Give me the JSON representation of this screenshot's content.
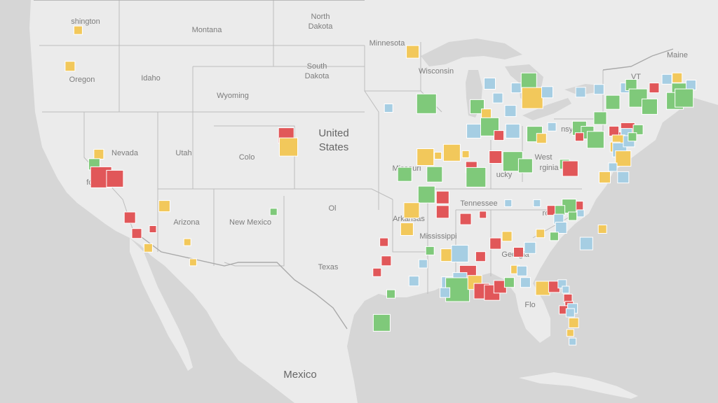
{
  "map": {
    "country_labels": [
      {
        "text": "United",
        "name": "country-label-united"
      },
      {
        "text": "States",
        "name": "country-label-states"
      },
      {
        "text": "Mexico",
        "name": "country-label-mexico"
      }
    ],
    "state_labels": [
      {
        "text": "shington",
        "name": "state-label-washington"
      },
      {
        "text": "Oregon",
        "name": "state-label-oregon"
      },
      {
        "text": "Idaho",
        "name": "state-label-idaho"
      },
      {
        "text": "Montana",
        "name": "state-label-montana"
      },
      {
        "text": "Wyoming",
        "name": "state-label-wyoming"
      },
      {
        "text": "North",
        "name": "state-label-north-dakota-1"
      },
      {
        "text": "Dakota",
        "name": "state-label-north-dakota-2"
      },
      {
        "text": "South",
        "name": "state-label-south-dakota-1"
      },
      {
        "text": "Dakota",
        "name": "state-label-south-dakota-2"
      },
      {
        "text": "Minnesota",
        "name": "state-label-minnesota"
      },
      {
        "text": "Wisconsin",
        "name": "state-label-wisconsin"
      },
      {
        "text": "Nevada",
        "name": "state-label-nevada"
      },
      {
        "text": "Utah",
        "name": "state-label-utah"
      },
      {
        "text": "Colo",
        "name": "state-label-colorado"
      },
      {
        "text": "Arizona",
        "name": "state-label-arizona"
      },
      {
        "text": "New Mexico",
        "name": "state-label-new-mexico"
      },
      {
        "text": "Missouri",
        "name": "state-label-missouri"
      },
      {
        "text": "Ol",
        "name": "state-label-oklahoma"
      },
      {
        "text": "Arkansas",
        "name": "state-label-arkansas"
      },
      {
        "text": "Texas",
        "name": "state-label-texas"
      },
      {
        "text": "Mississippi",
        "name": "state-label-mississippi"
      },
      {
        "text": "Tennessee",
        "name": "state-label-tennessee"
      },
      {
        "text": "ucky",
        "name": "state-label-kentucky"
      },
      {
        "text": "West",
        "name": "state-label-west-virginia-1"
      },
      {
        "text": "rginia",
        "name": "state-label-west-virginia-2"
      },
      {
        "text": "nsylvania",
        "name": "state-label-pennsylvania"
      },
      {
        "text": "rolina",
        "name": "state-label-north-carolina"
      },
      {
        "text": "Georgia",
        "name": "state-label-georgia"
      },
      {
        "text": "Flo",
        "name": "state-label-florida"
      },
      {
        "text": "fornia",
        "name": "state-label-california"
      },
      {
        "text": "VT",
        "name": "state-label-vermont"
      },
      {
        "text": "Maine",
        "name": "state-label-maine"
      }
    ],
    "marker_colors": {
      "red": "#e15759",
      "green": "#7fc97a",
      "yellow": "#f2c85b",
      "blue": "#a6cee3"
    },
    "markers": [
      {
        "c": "yellow",
        "lon": -123.0,
        "lat": 47.6,
        "s": 12
      },
      {
        "c": "yellow",
        "lon": -123.7,
        "lat": 45.1,
        "s": 14
      },
      {
        "c": "yellow",
        "lon": -121.2,
        "lat": 39.0,
        "s": 14
      },
      {
        "c": "green",
        "lon": -121.6,
        "lat": 38.3,
        "s": 16
      },
      {
        "c": "red",
        "lon": -121.0,
        "lat": 37.4,
        "s": 30
      },
      {
        "c": "red",
        "lon": -119.8,
        "lat": 37.3,
        "s": 24
      },
      {
        "c": "red",
        "lon": -118.5,
        "lat": 34.6,
        "s": 16
      },
      {
        "c": "red",
        "lon": -117.9,
        "lat": 33.5,
        "s": 14
      },
      {
        "c": "red",
        "lon": -116.5,
        "lat": 33.8,
        "s": 10
      },
      {
        "c": "yellow",
        "lon": -116.9,
        "lat": 32.5,
        "s": 12
      },
      {
        "c": "yellow",
        "lon": -115.5,
        "lat": 35.4,
        "s": 16
      },
      {
        "c": "yellow",
        "lon": -113.5,
        "lat": 32.9,
        "s": 10
      },
      {
        "c": "yellow",
        "lon": -113.0,
        "lat": 31.5,
        "s": 10
      },
      {
        "c": "red",
        "lon": -104.9,
        "lat": 40.3,
        "s": 22
      },
      {
        "c": "yellow",
        "lon": -104.7,
        "lat": 39.5,
        "s": 26
      },
      {
        "c": "green",
        "lon": -106.0,
        "lat": 35.0,
        "s": 10
      },
      {
        "c": "yellow",
        "lon": -93.9,
        "lat": 46.1,
        "s": 18
      },
      {
        "c": "green",
        "lon": -92.7,
        "lat": 42.5,
        "s": 28
      },
      {
        "c": "blue",
        "lon": -96.0,
        "lat": 42.2,
        "s": 12
      },
      {
        "c": "green",
        "lon": -88.3,
        "lat": 42.3,
        "s": 20
      },
      {
        "c": "blue",
        "lon": -87.2,
        "lat": 43.9,
        "s": 16
      },
      {
        "c": "blue",
        "lon": -84.9,
        "lat": 43.6,
        "s": 14
      },
      {
        "c": "blue",
        "lon": -86.5,
        "lat": 42.9,
        "s": 14
      },
      {
        "c": "green",
        "lon": -83.8,
        "lat": 44.1,
        "s": 22
      },
      {
        "c": "yellow",
        "lon": -83.5,
        "lat": 42.9,
        "s": 30
      },
      {
        "c": "blue",
        "lon": -82.2,
        "lat": 43.3,
        "s": 16
      },
      {
        "c": "blue",
        "lon": -85.4,
        "lat": 42.0,
        "s": 16
      },
      {
        "c": "yellow",
        "lon": -87.5,
        "lat": 41.8,
        "s": 14
      },
      {
        "c": "blue",
        "lon": -88.6,
        "lat": 40.6,
        "s": 20
      },
      {
        "c": "green",
        "lon": -87.2,
        "lat": 40.9,
        "s": 26
      },
      {
        "c": "blue",
        "lon": -85.2,
        "lat": 40.6,
        "s": 20
      },
      {
        "c": "red",
        "lon": -86.4,
        "lat": 40.3,
        "s": 14
      },
      {
        "c": "green",
        "lon": -83.3,
        "lat": 40.4,
        "s": 22
      },
      {
        "c": "yellow",
        "lon": -82.7,
        "lat": 40.1,
        "s": 14
      },
      {
        "c": "blue",
        "lon": -81.8,
        "lat": 40.9,
        "s": 12
      },
      {
        "c": "yellow",
        "lon": -90.5,
        "lat": 39.1,
        "s": 24
      },
      {
        "c": "yellow",
        "lon": -89.3,
        "lat": 39.0,
        "s": 10
      },
      {
        "c": "red",
        "lon": -86.7,
        "lat": 38.8,
        "s": 18
      },
      {
        "c": "green",
        "lon": -85.2,
        "lat": 38.5,
        "s": 28
      },
      {
        "c": "green",
        "lon": -84.1,
        "lat": 38.2,
        "s": 20
      },
      {
        "c": "green",
        "lon": -80.7,
        "lat": 38.3,
        "s": 14
      },
      {
        "c": "red",
        "lon": -80.2,
        "lat": 38.0,
        "s": 22
      },
      {
        "c": "green",
        "lon": -79.4,
        "lat": 40.8,
        "s": 20
      },
      {
        "c": "green",
        "lon": -78.7,
        "lat": 40.5,
        "s": 18
      },
      {
        "c": "red",
        "lon": -79.4,
        "lat": 40.2,
        "s": 12
      },
      {
        "c": "green",
        "lon": -77.6,
        "lat": 41.5,
        "s": 18
      },
      {
        "c": "blue",
        "lon": -77.7,
        "lat": 43.5,
        "s": 14
      },
      {
        "c": "blue",
        "lon": -79.3,
        "lat": 43.3,
        "s": 14
      },
      {
        "c": "green",
        "lon": -78.0,
        "lat": 40.0,
        "s": 24
      },
      {
        "c": "green",
        "lon": -76.5,
        "lat": 42.6,
        "s": 20
      },
      {
        "c": "blue",
        "lon": -75.4,
        "lat": 43.6,
        "s": 14
      },
      {
        "c": "green",
        "lon": -74.9,
        "lat": 43.8,
        "s": 16
      },
      {
        "c": "red",
        "lon": -72.9,
        "lat": 43.6,
        "s": 14
      },
      {
        "c": "blue",
        "lon": -71.8,
        "lat": 44.2,
        "s": 14
      },
      {
        "c": "yellow",
        "lon": -70.9,
        "lat": 44.3,
        "s": 14
      },
      {
        "c": "green",
        "lon": -70.7,
        "lat": 43.4,
        "s": 22
      },
      {
        "c": "green",
        "lon": -71.1,
        "lat": 42.7,
        "s": 24
      },
      {
        "c": "blue",
        "lon": -69.7,
        "lat": 43.8,
        "s": 14
      },
      {
        "c": "green",
        "lon": -74.3,
        "lat": 42.9,
        "s": 26
      },
      {
        "c": "green",
        "lon": -73.3,
        "lat": 42.3,
        "s": 22
      },
      {
        "c": "green",
        "lon": -70.3,
        "lat": 42.9,
        "s": 26
      },
      {
        "c": "red",
        "lon": -75.6,
        "lat": 40.1,
        "s": 18
      },
      {
        "c": "red",
        "lon": -75.2,
        "lat": 40.7,
        "s": 20
      },
      {
        "c": "red",
        "lon": -76.4,
        "lat": 40.6,
        "s": 14
      },
      {
        "c": "blue",
        "lon": -75.3,
        "lat": 40.4,
        "s": 16
      },
      {
        "c": "green",
        "lon": -74.3,
        "lat": 40.7,
        "s": 14
      },
      {
        "c": "yellow",
        "lon": -76.0,
        "lat": 39.9,
        "s": 18
      },
      {
        "c": "yellow",
        "lon": -76.3,
        "lat": 39.5,
        "s": 14
      },
      {
        "c": "blue",
        "lon": -75.9,
        "lat": 39.3,
        "s": 20
      },
      {
        "c": "blue",
        "lon": -75.1,
        "lat": 39.9,
        "s": 16
      },
      {
        "c": "green",
        "lon": -74.8,
        "lat": 40.2,
        "s": 12
      },
      {
        "c": "yellow",
        "lon": -75.6,
        "lat": 38.7,
        "s": 22
      },
      {
        "c": "blue",
        "lon": -76.5,
        "lat": 38.1,
        "s": 12
      },
      {
        "c": "blue",
        "lon": -75.6,
        "lat": 37.4,
        "s": 16
      },
      {
        "c": "yellow",
        "lon": -77.2,
        "lat": 37.4,
        "s": 16
      },
      {
        "c": "green",
        "lon": -92.0,
        "lat": 37.6,
        "s": 22
      },
      {
        "c": "yellow",
        "lon": -92.8,
        "lat": 38.8,
        "s": 24
      },
      {
        "c": "yellow",
        "lon": -91.7,
        "lat": 38.9,
        "s": 10
      },
      {
        "c": "red",
        "lon": -88.8,
        "lat": 38.1,
        "s": 16
      },
      {
        "c": "green",
        "lon": -88.4,
        "lat": 37.4,
        "s": 28
      },
      {
        "c": "green",
        "lon": -94.6,
        "lat": 37.6,
        "s": 20
      },
      {
        "c": "green",
        "lon": -92.7,
        "lat": 36.2,
        "s": 24
      },
      {
        "c": "yellow",
        "lon": -94.0,
        "lat": 35.1,
        "s": 22
      },
      {
        "c": "red",
        "lon": -91.3,
        "lat": 36.0,
        "s": 18
      },
      {
        "c": "red",
        "lon": -91.3,
        "lat": 35.0,
        "s": 18
      },
      {
        "c": "red",
        "lon": -89.3,
        "lat": 34.5,
        "s": 16
      },
      {
        "c": "red",
        "lon": -87.8,
        "lat": 34.8,
        "s": 10
      },
      {
        "c": "blue",
        "lon": -85.6,
        "lat": 35.6,
        "s": 10
      },
      {
        "c": "blue",
        "lon": -83.1,
        "lat": 35.6,
        "s": 10
      },
      {
        "c": "red",
        "lon": -81.8,
        "lat": 35.1,
        "s": 14
      },
      {
        "c": "red",
        "lon": -79.5,
        "lat": 35.4,
        "s": 14
      },
      {
        "c": "green",
        "lon": -80.3,
        "lat": 35.4,
        "s": 20
      },
      {
        "c": "green",
        "lon": -81.1,
        "lat": 35.1,
        "s": 14
      },
      {
        "c": "blue",
        "lon": -81.2,
        "lat": 34.5,
        "s": 14
      },
      {
        "c": "blue",
        "lon": -81.0,
        "lat": 33.9,
        "s": 16
      },
      {
        "c": "green",
        "lon": -80.0,
        "lat": 34.7,
        "s": 12
      },
      {
        "c": "blue",
        "lon": -79.3,
        "lat": 34.9,
        "s": 10
      },
      {
        "c": "yellow",
        "lon": -77.4,
        "lat": 33.8,
        "s": 12
      },
      {
        "c": "blue",
        "lon": -78.8,
        "lat": 32.8,
        "s": 18
      },
      {
        "c": "green",
        "lon": -81.6,
        "lat": 33.3,
        "s": 12
      },
      {
        "c": "yellow",
        "lon": -82.8,
        "lat": 33.5,
        "s": 12
      },
      {
        "c": "yellow",
        "lon": -85.7,
        "lat": 33.3,
        "s": 14
      },
      {
        "c": "red",
        "lon": -86.7,
        "lat": 32.8,
        "s": 16
      },
      {
        "c": "red",
        "lon": -84.7,
        "lat": 32.2,
        "s": 14
      },
      {
        "c": "blue",
        "lon": -83.7,
        "lat": 32.5,
        "s": 16
      },
      {
        "c": "yellow",
        "lon": -85.0,
        "lat": 31.0,
        "s": 12
      },
      {
        "c": "blue",
        "lon": -84.4,
        "lat": 30.9,
        "s": 14
      },
      {
        "c": "yellow",
        "lon": -90.9,
        "lat": 32.0,
        "s": 18
      },
      {
        "c": "blue",
        "lon": -89.8,
        "lat": 32.1,
        "s": 24
      },
      {
        "c": "red",
        "lon": -88.0,
        "lat": 31.9,
        "s": 14
      },
      {
        "c": "red",
        "lon": -89.1,
        "lat": 30.7,
        "s": 24
      },
      {
        "c": "blue",
        "lon": -89.8,
        "lat": 30.3,
        "s": 20
      },
      {
        "c": "blue",
        "lon": -90.9,
        "lat": 30.1,
        "s": 16
      },
      {
        "c": "green",
        "lon": -90.0,
        "lat": 29.6,
        "s": 34
      },
      {
        "c": "blue",
        "lon": -91.1,
        "lat": 29.4,
        "s": 14
      },
      {
        "c": "yellow",
        "lon": -88.5,
        "lat": 30.1,
        "s": 20
      },
      {
        "c": "red",
        "lon": -87.9,
        "lat": 29.5,
        "s": 22
      },
      {
        "c": "red",
        "lon": -87.0,
        "lat": 29.4,
        "s": 22
      },
      {
        "c": "red",
        "lon": -86.3,
        "lat": 29.8,
        "s": 18
      },
      {
        "c": "green",
        "lon": -85.5,
        "lat": 30.1,
        "s": 14
      },
      {
        "c": "blue",
        "lon": -84.1,
        "lat": 30.1,
        "s": 14
      },
      {
        "c": "yellow",
        "lon": -82.6,
        "lat": 29.7,
        "s": 20
      },
      {
        "c": "red",
        "lon": -81.6,
        "lat": 29.8,
        "s": 16
      },
      {
        "c": "blue",
        "lon": -80.9,
        "lat": 30.0,
        "s": 12
      },
      {
        "c": "blue",
        "lon": -80.6,
        "lat": 29.6,
        "s": 10
      },
      {
        "c": "red",
        "lon": -80.4,
        "lat": 29.0,
        "s": 12
      },
      {
        "c": "red",
        "lon": -80.3,
        "lat": 28.5,
        "s": 12
      },
      {
        "c": "blue",
        "lon": -80.0,
        "lat": 28.3,
        "s": 14
      },
      {
        "c": "red",
        "lon": -80.8,
        "lat": 28.2,
        "s": 12
      },
      {
        "c": "blue",
        "lon": -80.2,
        "lat": 28.0,
        "s": 12
      },
      {
        "c": "yellow",
        "lon": -79.9,
        "lat": 27.3,
        "s": 14
      },
      {
        "c": "yellow",
        "lon": -80.2,
        "lat": 26.6,
        "s": 10
      },
      {
        "c": "blue",
        "lon": -80.0,
        "lat": 26.0,
        "s": 10
      },
      {
        "c": "red",
        "lon": -96.4,
        "lat": 32.9,
        "s": 12
      },
      {
        "c": "red",
        "lon": -96.2,
        "lat": 31.6,
        "s": 14
      },
      {
        "c": "red",
        "lon": -97.0,
        "lat": 30.8,
        "s": 12
      },
      {
        "c": "green",
        "lon": -95.8,
        "lat": 29.3,
        "s": 12
      },
      {
        "c": "blue",
        "lon": -93.8,
        "lat": 30.2,
        "s": 14
      },
      {
        "c": "blue",
        "lon": -93.0,
        "lat": 31.4,
        "s": 12
      },
      {
        "c": "yellow",
        "lon": -94.4,
        "lat": 33.8,
        "s": 18
      },
      {
        "c": "green",
        "lon": -92.4,
        "lat": 32.3,
        "s": 12
      },
      {
        "c": "green",
        "lon": -96.6,
        "lat": 27.3,
        "s": 24
      }
    ]
  }
}
